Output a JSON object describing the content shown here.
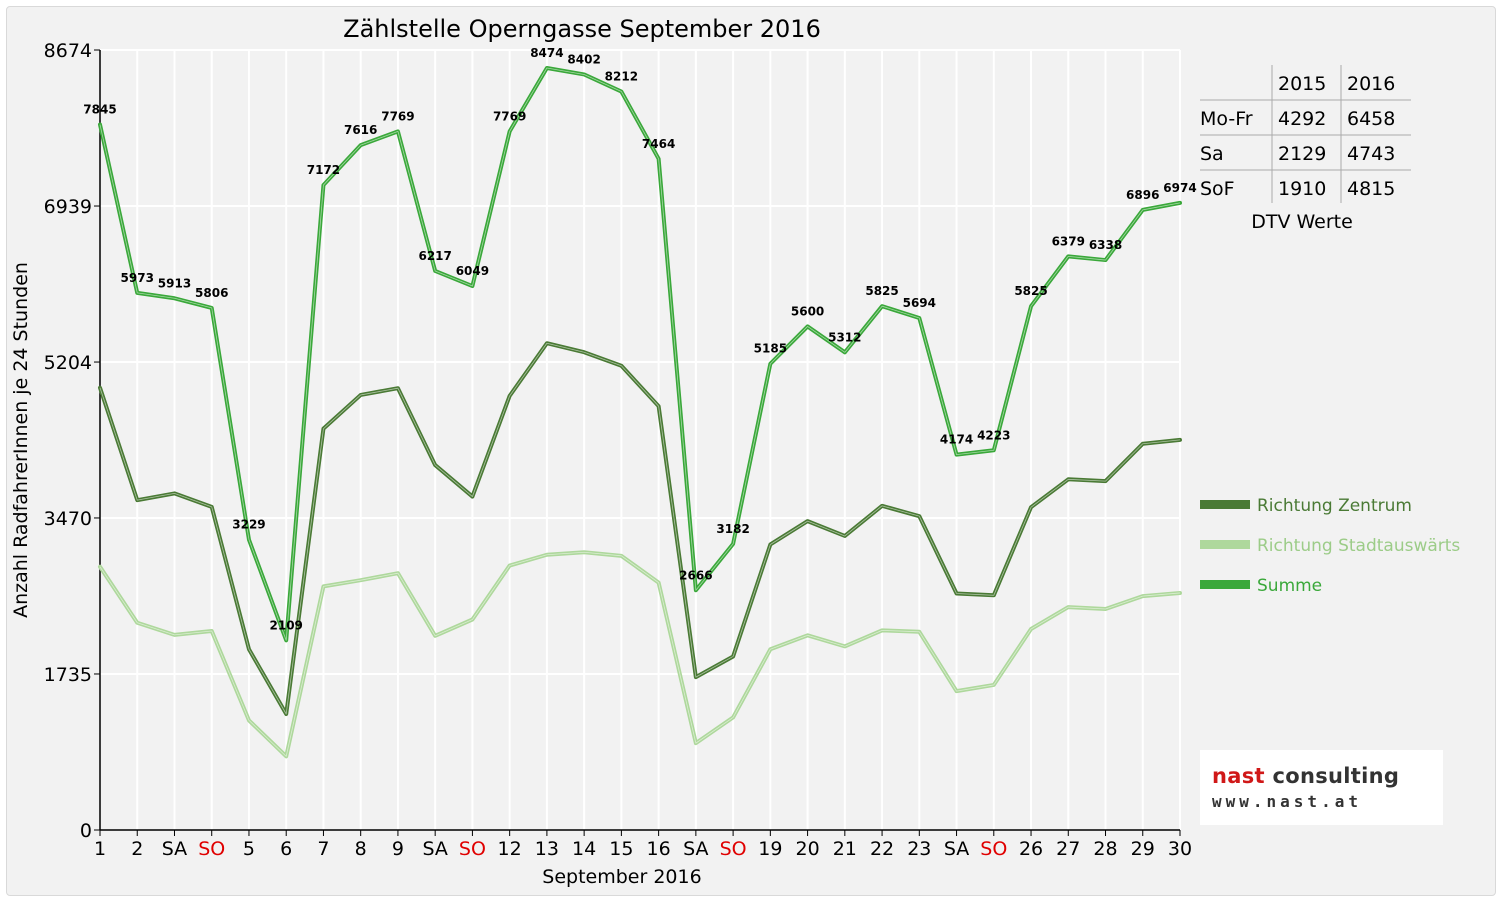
{
  "chart_data": {
    "type": "line",
    "title": "Zählstelle Operngasse September 2016",
    "xlabel": "September 2016",
    "ylabel": "Anzahl RadfahrerInnen je 24 Stunden",
    "ylim": [
      0,
      8674
    ],
    "yticks": [
      "0",
      "1735",
      "3470",
      "5204",
      "6939",
      "8674"
    ],
    "yticks_values": [
      0,
      1735,
      3470,
      5204,
      6939,
      8674
    ],
    "grid": true,
    "legend_position": "right",
    "categories": [
      "1",
      "2",
      "SA",
      "SO",
      "5",
      "6",
      "7",
      "8",
      "9",
      "SA",
      "SO",
      "12",
      "13",
      "14",
      "15",
      "16",
      "SA",
      "SO",
      "19",
      "20",
      "21",
      "22",
      "23",
      "SA",
      "SO",
      "26",
      "27",
      "28",
      "29",
      "30"
    ],
    "weekend_sunday_color": "#e00000",
    "series": [
      {
        "name": "Richtung Zentrum",
        "color": "#4a7a35",
        "values": [
          4918,
          3668,
          3743,
          3593,
          2010,
          1290,
          4463,
          4838,
          4913,
          4058,
          3708,
          4828,
          5413,
          5313,
          5163,
          4713,
          1700,
          1930,
          3175,
          3435,
          3270,
          3605,
          3490,
          2630,
          2610,
          3590,
          3900,
          3880,
          4295,
          4338
        ]
      },
      {
        "name": "Richtung Stadtauswärts",
        "color": "#aed89c",
        "values": [
          2927,
          2305,
          2170,
          2213,
          1219,
          819,
          2709,
          2778,
          2856,
          2159,
          2341,
          2941,
          3061,
          3089,
          3049,
          2751,
          966,
          1252,
          2010,
          2165,
          2042,
          2220,
          2204,
          1544,
          1613,
          2235,
          2479,
          2458,
          2601,
          2636
        ]
      },
      {
        "name": "Summe",
        "color": "#3aa83a",
        "values": [
          7845,
          5973,
          5913,
          5806,
          3229,
          2109,
          7172,
          7616,
          7769,
          6217,
          6049,
          7769,
          8474,
          8402,
          8212,
          7464,
          2666,
          3182,
          5185,
          5600,
          5312,
          5825,
          5694,
          4174,
          4223,
          5825,
          6379,
          6338,
          6896,
          6974
        ]
      }
    ],
    "data_labels": [
      "7845",
      "5973",
      "5913",
      "5806",
      "3229",
      "2109",
      "7172",
      "7616",
      "7769",
      "6217",
      "6049",
      "7769",
      "8474",
      "8402",
      "8212",
      "7464",
      "2666",
      "3182",
      "5185",
      "5600",
      "5312",
      "5825",
      "5694",
      "4174",
      "4223",
      "5825",
      "6379",
      "6338",
      "6896",
      "6974"
    ]
  },
  "dtv_table": {
    "caption": "DTV Werte",
    "columns": [
      "2015",
      "2016"
    ],
    "rows": [
      {
        "label": "Mo-Fr",
        "values": [
          "4292",
          "6458"
        ]
      },
      {
        "label": "Sa",
        "values": [
          "2129",
          "4743"
        ]
      },
      {
        "label": "SoF",
        "values": [
          "1910",
          "4815"
        ]
      }
    ]
  },
  "logo": {
    "brand_nast": "nast",
    "brand_rest": " consulting",
    "url": "www.nast.at"
  }
}
